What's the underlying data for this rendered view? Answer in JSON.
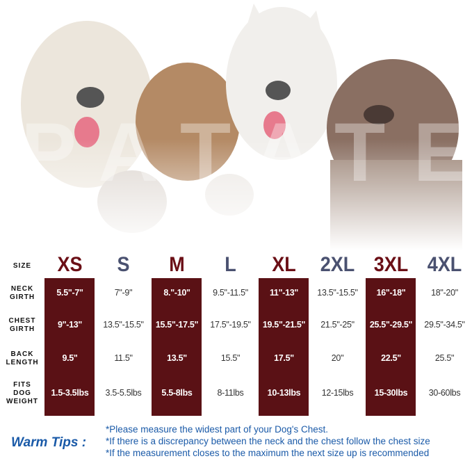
{
  "watermark": "PATATE",
  "table": {
    "sizes": [
      "XS",
      "S",
      "M",
      "L",
      "XL",
      "2XL",
      "3XL",
      "4XL"
    ],
    "header_label": "SIZE",
    "rows": [
      {
        "label": "NECK GIRTH",
        "values": [
          "5.5\"-7\"",
          "7\"-9\"",
          "8.\"-10\"",
          "9.5\"-11.5\"",
          "11\"-13\"",
          "13.5\"-15.5\"",
          "16\"-18\"",
          "18\"-20\""
        ]
      },
      {
        "label": "CHEST GIRTH",
        "values": [
          "9\"-13\"",
          "13.5\"-15.5\"",
          "15.5\"-17.5\"",
          "17.5\"-19.5\"",
          "19.5\"-21.5\"",
          "21.5\"-25\"",
          "25.5\"-29.5\"",
          "29.5\"-34.5\""
        ]
      },
      {
        "label": "BACK LENGTH",
        "values": [
          "9.5\"",
          "11.5\"",
          "13.5\"",
          "15.5\"",
          "17.5\"",
          "20\"",
          "22.5\"",
          "25.5\""
        ]
      },
      {
        "label": "FITS DOG WEIGHT",
        "values": [
          "1.5-3.5lbs",
          "3.5-5.5lbs",
          "5.5-8lbs",
          "8-11lbs",
          "10-13lbs",
          "12-15lbs",
          "15-30lbs",
          "30-60lbs"
        ]
      }
    ]
  },
  "tips": {
    "title": "Warm Tips :",
    "lines": [
      "*Please measure the widest part of your Dog's Chest.",
      "*If there is a discrepancy between the neck and the chest  follow the chest size",
      "*If the measurement closes to the maximum the next size up is recommended"
    ]
  }
}
